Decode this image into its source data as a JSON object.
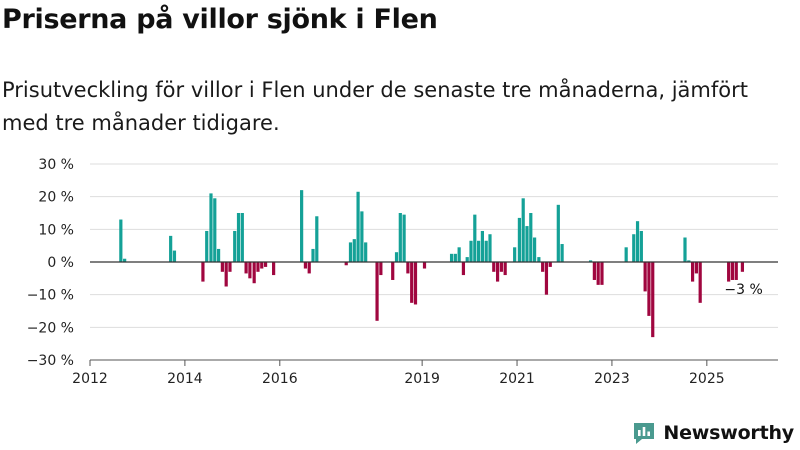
{
  "header": {
    "title": "Priserna på villor sjönk i Flen",
    "subtitle": "Prisutveckling för villor i Flen under de senaste tre månaderna, jämfört med tre månader tidigare."
  },
  "brand": {
    "name": "Newsworthy",
    "color": "#4a9a8f"
  },
  "colors": {
    "positive": "#14a197",
    "negative": "#a0063f"
  },
  "chart_data": {
    "type": "bar",
    "ylabel": "",
    "xlabel": "",
    "ylim": [
      -30,
      30
    ],
    "xlim": [
      2012,
      2026.5
    ],
    "y_ticks": [
      30,
      20,
      10,
      0,
      -10,
      -20,
      -30
    ],
    "y_tick_labels": [
      "30 %",
      "20 %",
      "10 %",
      "0 %",
      "−10 %",
      "−20 %",
      "−30 %"
    ],
    "x_ticks": [
      2012,
      2014,
      2016,
      2019,
      2021,
      2023,
      2025
    ],
    "x_tick_labels": [
      "2012",
      "2014",
      "2016",
      "2019",
      "2021",
      "2023",
      "2025"
    ],
    "annotation": {
      "text": "−3 %",
      "x": 2025.75,
      "y": -3
    },
    "unit": "percent change vs three months earlier",
    "series": [
      {
        "name": "Prisutveckling",
        "points": [
          {
            "x": 2012.65,
            "y": 13
          },
          {
            "x": 2012.73,
            "y": 1
          },
          {
            "x": 2013.7,
            "y": 8
          },
          {
            "x": 2013.78,
            "y": 3.5
          },
          {
            "x": 2014.38,
            "y": -6
          },
          {
            "x": 2014.46,
            "y": 9.5
          },
          {
            "x": 2014.55,
            "y": 21
          },
          {
            "x": 2014.63,
            "y": 19.5
          },
          {
            "x": 2014.71,
            "y": 4
          },
          {
            "x": 2014.79,
            "y": -3
          },
          {
            "x": 2014.87,
            "y": -7.5
          },
          {
            "x": 2014.95,
            "y": -3
          },
          {
            "x": 2015.05,
            "y": 9.5
          },
          {
            "x": 2015.13,
            "y": 15
          },
          {
            "x": 2015.21,
            "y": 15
          },
          {
            "x": 2015.29,
            "y": -3.5
          },
          {
            "x": 2015.37,
            "y": -5
          },
          {
            "x": 2015.46,
            "y": -6.5
          },
          {
            "x": 2015.54,
            "y": -3
          },
          {
            "x": 2015.62,
            "y": -2
          },
          {
            "x": 2015.7,
            "y": -1.5
          },
          {
            "x": 2015.87,
            "y": -4
          },
          {
            "x": 2016.46,
            "y": 22
          },
          {
            "x": 2016.54,
            "y": -2
          },
          {
            "x": 2016.62,
            "y": -3.5
          },
          {
            "x": 2016.7,
            "y": 4
          },
          {
            "x": 2016.78,
            "y": 14
          },
          {
            "x": 2017.4,
            "y": -1
          },
          {
            "x": 2017.49,
            "y": 6
          },
          {
            "x": 2017.57,
            "y": 7
          },
          {
            "x": 2017.65,
            "y": 21.5
          },
          {
            "x": 2017.73,
            "y": 15.5
          },
          {
            "x": 2017.81,
            "y": 6
          },
          {
            "x": 2018.05,
            "y": -18
          },
          {
            "x": 2018.13,
            "y": -4
          },
          {
            "x": 2018.38,
            "y": -5.5
          },
          {
            "x": 2018.46,
            "y": 3
          },
          {
            "x": 2018.54,
            "y": 15
          },
          {
            "x": 2018.62,
            "y": 14.5
          },
          {
            "x": 2018.7,
            "y": -3.5
          },
          {
            "x": 2018.78,
            "y": -12.5
          },
          {
            "x": 2018.86,
            "y": -13
          },
          {
            "x": 2019.05,
            "y": -2
          },
          {
            "x": 2019.62,
            "y": 2.5
          },
          {
            "x": 2019.7,
            "y": 2.5
          },
          {
            "x": 2019.78,
            "y": 4.5
          },
          {
            "x": 2019.87,
            "y": -4
          },
          {
            "x": 2019.95,
            "y": 1.5
          },
          {
            "x": 2020.03,
            "y": 6.5
          },
          {
            "x": 2020.11,
            "y": 14.5
          },
          {
            "x": 2020.19,
            "y": 6.5
          },
          {
            "x": 2020.27,
            "y": 9.5
          },
          {
            "x": 2020.35,
            "y": 6.5
          },
          {
            "x": 2020.43,
            "y": 8.5
          },
          {
            "x": 2020.51,
            "y": -3
          },
          {
            "x": 2020.59,
            "y": -6
          },
          {
            "x": 2020.67,
            "y": -3
          },
          {
            "x": 2020.75,
            "y": -4
          },
          {
            "x": 2020.95,
            "y": 4.5
          },
          {
            "x": 2021.05,
            "y": 13.5
          },
          {
            "x": 2021.13,
            "y": 19.5
          },
          {
            "x": 2021.21,
            "y": 11
          },
          {
            "x": 2021.29,
            "y": 15
          },
          {
            "x": 2021.37,
            "y": 7.5
          },
          {
            "x": 2021.46,
            "y": 1.5
          },
          {
            "x": 2021.54,
            "y": -3
          },
          {
            "x": 2021.62,
            "y": -10
          },
          {
            "x": 2021.7,
            "y": -1.5
          },
          {
            "x": 2021.87,
            "y": 17.5
          },
          {
            "x": 2021.95,
            "y": 5.5
          },
          {
            "x": 2022.55,
            "y": 0.5
          },
          {
            "x": 2022.63,
            "y": -5.5
          },
          {
            "x": 2022.71,
            "y": -7
          },
          {
            "x": 2022.79,
            "y": -7
          },
          {
            "x": 2023.3,
            "y": 4.5
          },
          {
            "x": 2023.46,
            "y": 8.5
          },
          {
            "x": 2023.54,
            "y": 12.5
          },
          {
            "x": 2023.62,
            "y": 9.5
          },
          {
            "x": 2023.7,
            "y": -9
          },
          {
            "x": 2023.78,
            "y": -16.5
          },
          {
            "x": 2023.86,
            "y": -23
          },
          {
            "x": 2024.54,
            "y": 7.5
          },
          {
            "x": 2024.62,
            "y": 0.5
          },
          {
            "x": 2024.7,
            "y": -6
          },
          {
            "x": 2024.78,
            "y": -3.5
          },
          {
            "x": 2024.86,
            "y": -12.5
          },
          {
            "x": 2025.46,
            "y": -6
          },
          {
            "x": 2025.54,
            "y": -5.5
          },
          {
            "x": 2025.62,
            "y": -5.5
          },
          {
            "x": 2025.75,
            "y": -3
          }
        ]
      }
    ]
  }
}
